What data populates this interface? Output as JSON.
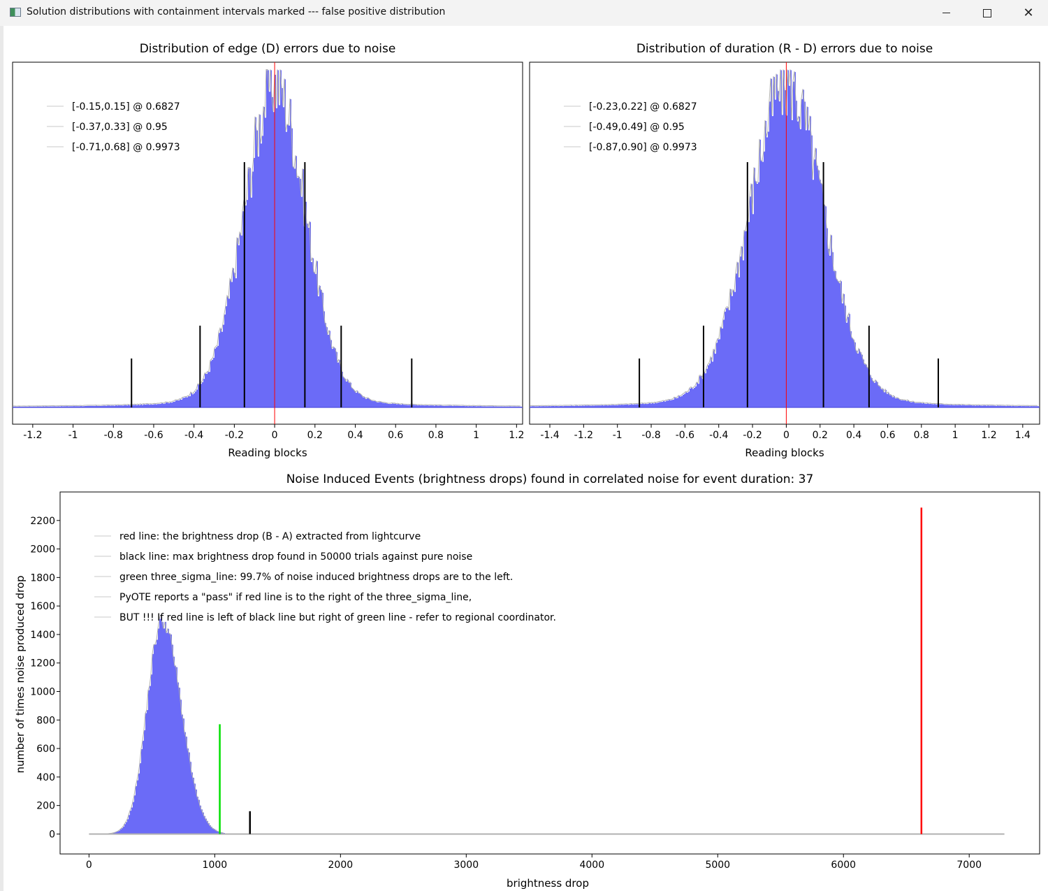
{
  "window": {
    "title": "Solution distributions with containment intervals marked --- false positive distribution",
    "icons": {
      "app": "chart-app-icon",
      "minimize": "minimize-icon",
      "maximize": "maximize-icon",
      "close": "close-icon"
    }
  },
  "colors": {
    "histogram_fill": "#6b6bf7",
    "histogram_outline": "#b0b0b0",
    "red_line": "#ff0000",
    "green_line": "#00e000",
    "black_line": "#000000",
    "baseline": "#5050e0"
  },
  "chart_data": [
    {
      "type": "bar",
      "title": "Distribution of edge (D) errors due to noise",
      "xlabel": "Reading blocks",
      "xlim": [
        -1.3,
        1.23
      ],
      "xticks": [
        -1.2,
        -1,
        -0.8,
        -0.6,
        -0.4,
        -0.2,
        0,
        0.2,
        0.4,
        0.6,
        0.8,
        1,
        1.2
      ],
      "xtick_labels": [
        "-1.2",
        "-1",
        "-0.8",
        "-0.6",
        "-0.4",
        "-0.2",
        "0",
        "0.2",
        "0.4",
        "0.6",
        "0.8",
        "1",
        "1.2"
      ],
      "center_line": 0,
      "sigma": 0.155,
      "legend": [
        "[-0.15,0.15] @ 0.6827",
        "[-0.37,0.33] @ 0.95",
        "[-0.71,0.68] @ 0.9973"
      ],
      "intervals": [
        {
          "low": -0.15,
          "high": 0.15,
          "level": 0.6827
        },
        {
          "low": -0.37,
          "high": 0.33,
          "level": 0.95
        },
        {
          "low": -0.71,
          "high": 0.68,
          "level": 0.9973
        }
      ]
    },
    {
      "type": "bar",
      "title": "Distribution of duration (R - D) errors due to noise",
      "xlabel": "Reading blocks",
      "xlim": [
        -1.52,
        1.5
      ],
      "xticks": [
        -1.4,
        -1.2,
        -1,
        -0.8,
        -0.6,
        -0.4,
        -0.2,
        0,
        0.2,
        0.4,
        0.6,
        0.8,
        1,
        1.2,
        1.4
      ],
      "xtick_labels": [
        "-1.4",
        "-1.2",
        "-1",
        "-0.8",
        "-0.6",
        "-0.4",
        "-0.2",
        "0",
        "0.2",
        "0.4",
        "0.6",
        "0.8",
        "1",
        "1.2",
        "1.4"
      ],
      "center_line": 0,
      "sigma": 0.225,
      "legend": [
        "[-0.23,0.22] @ 0.6827",
        "[-0.49,0.49] @ 0.95",
        "[-0.87,0.90] @ 0.9973"
      ],
      "intervals": [
        {
          "low": -0.23,
          "high": 0.22,
          "level": 0.6827
        },
        {
          "low": -0.49,
          "high": 0.49,
          "level": 0.95
        },
        {
          "low": -0.87,
          "high": 0.9,
          "level": 0.9973
        }
      ]
    },
    {
      "type": "bar",
      "title": "Noise Induced Events (brightness drops) found in correlated noise for event duration: 37",
      "xlabel": "brightness drop",
      "ylabel": "number of times noise produced drop",
      "xlim": [
        -230,
        7560
      ],
      "ylim": [
        -140,
        2400
      ],
      "xticks": [
        0,
        1000,
        2000,
        3000,
        4000,
        5000,
        6000,
        7000
      ],
      "xtick_labels": [
        "0",
        "1000",
        "2000",
        "3000",
        "4000",
        "5000",
        "6000",
        "7000"
      ],
      "yticks": [
        0,
        200,
        400,
        600,
        800,
        1000,
        1200,
        1400,
        1600,
        1800,
        2000,
        2200
      ],
      "ytick_labels": [
        "0",
        "200",
        "400",
        "600",
        "800",
        "1000",
        "1200",
        "1400",
        "1600",
        "1800",
        "2000",
        "2200"
      ],
      "histogram": {
        "peak_x": 580,
        "peak_count": 1500,
        "spread_left": 120,
        "spread_right": 150,
        "x_max": 7280
      },
      "lines": [
        {
          "name": "green three_sigma_line",
          "x": 1040,
          "height": 770
        },
        {
          "name": "black line",
          "x": 1280,
          "height": 160
        },
        {
          "name": "red line",
          "x": 6620,
          "height": 2290
        }
      ],
      "legend": [
        "red line: the brightness drop (B - A) extracted from lightcurve",
        "black line: max brightness drop found in 50000 trials against pure noise",
        "green three_sigma_line: 99.7% of noise induced brightness drops are to the left.",
        "PyOTE reports a \"pass\" if red line is to the right of the three_sigma_line,",
        "BUT !!! If red line is left of black line but right of green line - refer to regional coordinator."
      ]
    }
  ]
}
